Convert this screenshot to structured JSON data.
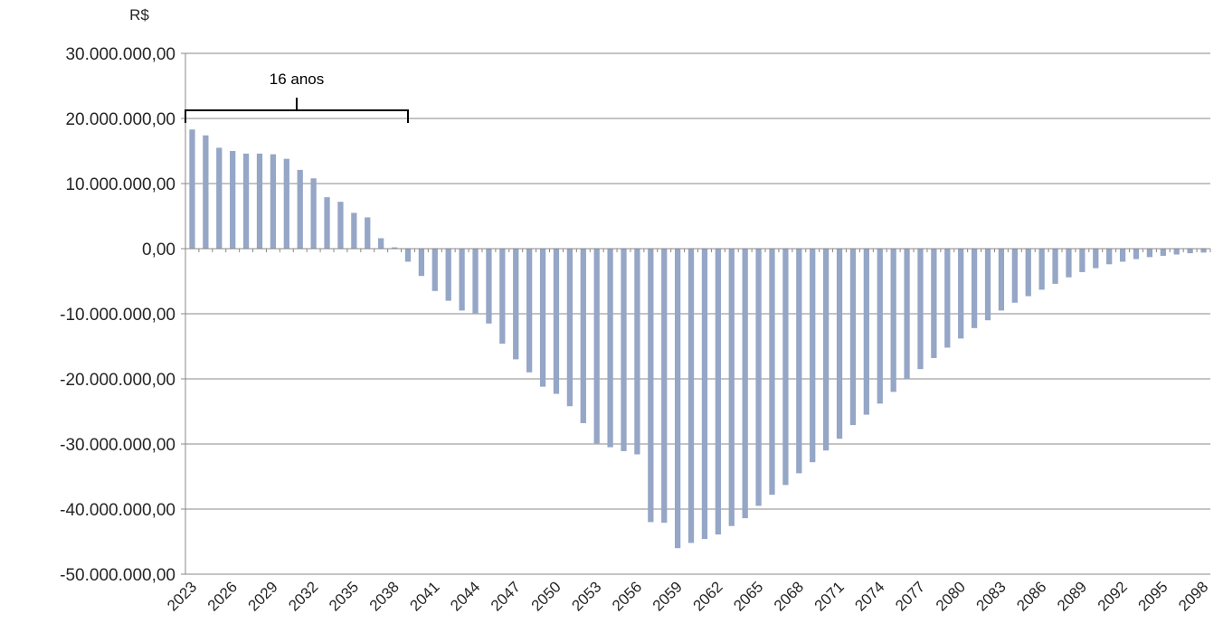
{
  "chart_data": {
    "type": "bar",
    "title": "",
    "ylabel": "R$",
    "xlabel": "",
    "ylim": [
      -50000000,
      30000000
    ],
    "yticks": [
      30000000,
      20000000,
      10000000,
      0,
      -10000000,
      -20000000,
      -30000000,
      -40000000,
      -50000000
    ],
    "ytick_labels": [
      "30.000.000,00",
      "20.000.000,00",
      "10.000.000,00",
      "0,00",
      "-10.000.000,00",
      "-20.000.000,00",
      "-30.000.000,00",
      "-40.000.000,00",
      "-50.000.000,00"
    ],
    "xtick_labels": [
      "2023",
      "2026",
      "2029",
      "2032",
      "2035",
      "2038",
      "2041",
      "2044",
      "2047",
      "2050",
      "2053",
      "2056",
      "2059",
      "2062",
      "2065",
      "2068",
      "2071",
      "2074",
      "2077",
      "2080",
      "2083",
      "2086",
      "2089",
      "2092",
      "2095",
      "2098"
    ],
    "grid": true,
    "bar_color": "#95A6C6",
    "annotation": {
      "label": "16 anos",
      "from": "2023",
      "to": "2039"
    },
    "categories": [
      "2023",
      "2024",
      "2025",
      "2026",
      "2027",
      "2028",
      "2029",
      "2030",
      "2031",
      "2032",
      "2033",
      "2034",
      "2035",
      "2036",
      "2037",
      "2038",
      "2039",
      "2040",
      "2041",
      "2042",
      "2043",
      "2044",
      "2045",
      "2046",
      "2047",
      "2048",
      "2049",
      "2050",
      "2051",
      "2052",
      "2053",
      "2054",
      "2055",
      "2056",
      "2057",
      "2058",
      "2059",
      "2060",
      "2061",
      "2062",
      "2063",
      "2064",
      "2065",
      "2066",
      "2067",
      "2068",
      "2069",
      "2070",
      "2071",
      "2072",
      "2073",
      "2074",
      "2075",
      "2076",
      "2077",
      "2078",
      "2079",
      "2080",
      "2081",
      "2082",
      "2083",
      "2084",
      "2085",
      "2086",
      "2087",
      "2088",
      "2089",
      "2090",
      "2091",
      "2092",
      "2093",
      "2094",
      "2095",
      "2096",
      "2097",
      "2098"
    ],
    "values": [
      18300000,
      17400000,
      15500000,
      15000000,
      14600000,
      14600000,
      14500000,
      13800000,
      12100000,
      10800000,
      7900000,
      7200000,
      5500000,
      4800000,
      1600000,
      200000,
      -2000000,
      -4200000,
      -6500000,
      -8000000,
      -9500000,
      -10000000,
      -11500000,
      -14600000,
      -17000000,
      -19000000,
      -21200000,
      -22300000,
      -24200000,
      -26800000,
      -29900000,
      -30500000,
      -31100000,
      -31600000,
      -42000000,
      -42100000,
      -46000000,
      -45200000,
      -44600000,
      -43900000,
      -42600000,
      -41400000,
      -39500000,
      -37800000,
      -36300000,
      -34500000,
      -32800000,
      -31000000,
      -29200000,
      -27100000,
      -25500000,
      -23800000,
      -22000000,
      -20000000,
      -18500000,
      -16800000,
      -15200000,
      -13800000,
      -12200000,
      -11000000,
      -9500000,
      -8300000,
      -7300000,
      -6300000,
      -5400000,
      -4400000,
      -3600000,
      -3000000,
      -2400000,
      -2000000,
      -1600000,
      -1300000,
      -1100000,
      -900000,
      -700000,
      -600000
    ]
  }
}
